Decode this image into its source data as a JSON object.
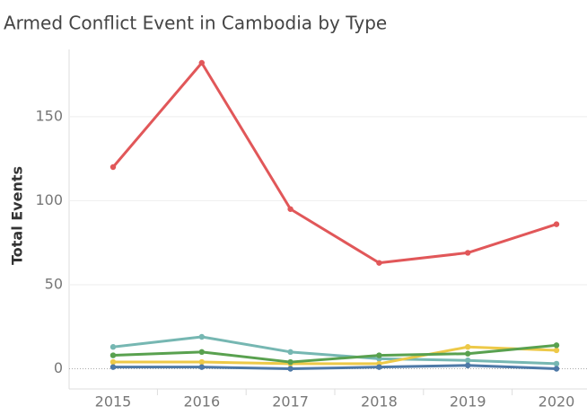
{
  "chart_data": {
    "type": "line",
    "title": "Armed Conflict Event in Cambodia by Type",
    "y_label": "Total Events",
    "categories": [
      "2015",
      "2016",
      "2017",
      "2018",
      "2019",
      "2020"
    ],
    "series": [
      {
        "color": "#76b7b2",
        "values": [
          13,
          19,
          10,
          6,
          5,
          3
        ]
      },
      {
        "color": "#edc948",
        "values": [
          4,
          4,
          3,
          3,
          13,
          11
        ]
      },
      {
        "color": "#59a14f",
        "values": [
          8,
          10,
          4,
          8,
          9,
          14
        ]
      },
      {
        "color": "#4e79a7",
        "values": [
          1,
          1,
          0,
          1,
          2,
          0
        ]
      },
      {
        "color": "#e15759",
        "values": [
          120,
          182,
          95,
          63,
          69,
          86
        ]
      }
    ],
    "ylim": [
      -12,
      190
    ],
    "yticks": [
      0,
      50,
      100,
      150
    ],
    "grid": true
  }
}
